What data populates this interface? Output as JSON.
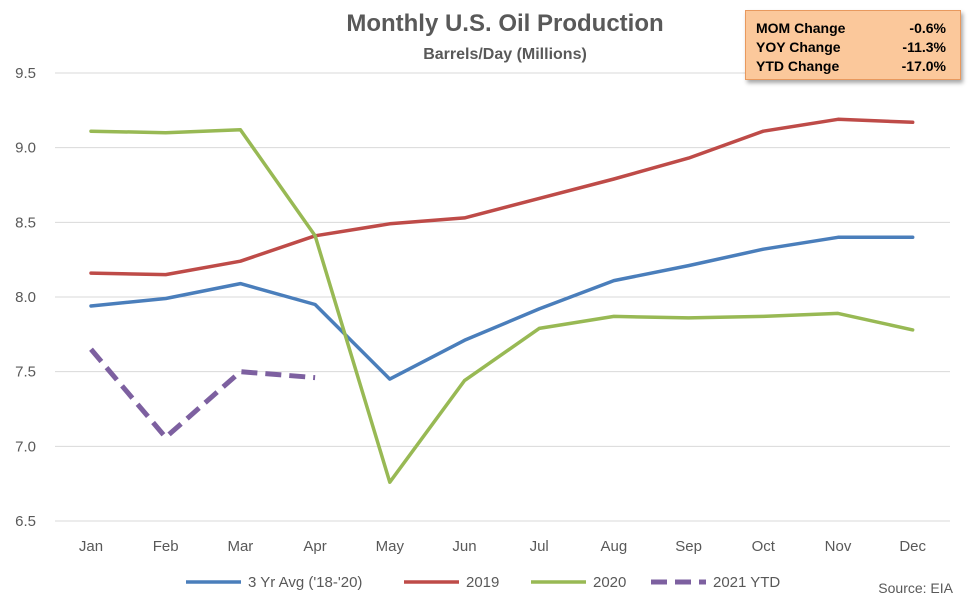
{
  "chart_data": {
    "type": "line",
    "title": "Monthly U.S. Oil Production",
    "subtitle": "Barrels/Day (Millions)",
    "xlabel": "",
    "ylabel": "",
    "categories": [
      "Jan",
      "Feb",
      "Mar",
      "Apr",
      "May",
      "Jun",
      "Jul",
      "Aug",
      "Sep",
      "Oct",
      "Nov",
      "Dec"
    ],
    "ylim": [
      6.5,
      9.5
    ],
    "yticks": [
      "6.5",
      "7.0",
      "7.5",
      "8.0",
      "8.5",
      "9.0",
      "9.5"
    ],
    "grid": true,
    "legend_position": "bottom",
    "series": [
      {
        "name": "3 Yr Avg ('18-'20)",
        "color": "#4a7ebb",
        "style": "solid",
        "values": [
          7.94,
          7.99,
          8.09,
          7.95,
          7.45,
          7.71,
          7.92,
          8.11,
          8.21,
          8.32,
          8.4,
          8.4
        ]
      },
      {
        "name": "2019",
        "color": "#be4b48",
        "style": "solid",
        "values": [
          8.16,
          8.15,
          8.24,
          8.41,
          8.49,
          8.53,
          8.66,
          8.79,
          8.93,
          9.11,
          9.19,
          9.17
        ]
      },
      {
        "name": "2020",
        "color": "#98b954",
        "style": "solid",
        "values": [
          9.11,
          9.1,
          9.12,
          8.41,
          6.76,
          7.44,
          7.79,
          7.87,
          7.86,
          7.87,
          7.89,
          7.78
        ]
      },
      {
        "name": "2021 YTD",
        "color": "#7d60a0",
        "style": "dashed",
        "values": [
          7.65,
          7.06,
          7.5,
          7.46,
          null,
          null,
          null,
          null,
          null,
          null,
          null,
          null
        ]
      }
    ],
    "source": "Source: EIA"
  },
  "stats_box": [
    {
      "label": "MOM Change",
      "value": "-0.6%"
    },
    {
      "label": "YOY Change",
      "value": "-11.3%"
    },
    {
      "label": "YTD Change",
      "value": "-17.0%"
    }
  ]
}
